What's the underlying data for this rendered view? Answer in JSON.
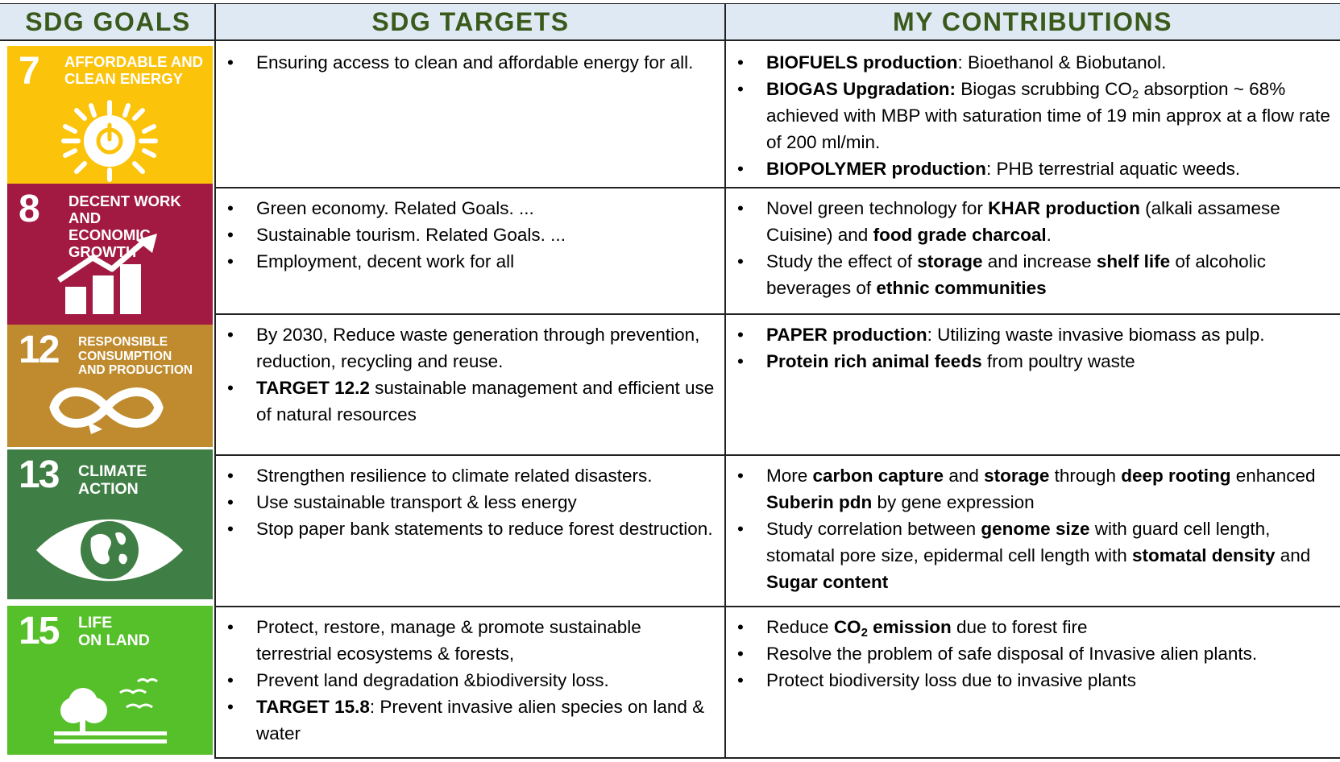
{
  "headers": {
    "goals": "SDG GOALS",
    "targets": "SDG TARGETS",
    "contributions": "MY CONTRIBUTIONS"
  },
  "bullet": "•",
  "goals": [
    {
      "number": "7",
      "title": "AFFORDABLE AND\nCLEAN ENERGY",
      "color": "#fcc30b",
      "icon": "sun-power-icon",
      "targets": [
        [
          {
            "t": "Ensuring access to clean and affordable energy for all."
          }
        ]
      ],
      "contributions": [
        [
          {
            "t": "BIOFUELS production",
            "b": true
          },
          {
            "t": ": Bioethanol & Biobutanol."
          }
        ],
        [
          {
            "t": "BIOGAS Upgradation:",
            "b": true
          },
          {
            "t": " Biogas scrubbing CO"
          },
          {
            "t": "2",
            "sub": true
          },
          {
            "t": " absorption ~ 68% achieved with MBP with saturation time of 19 min approx at a flow rate of 200 ml/min."
          }
        ],
        [
          {
            "t": "BIOPOLYMER production",
            "b": true
          },
          {
            "t": ": PHB terrestrial  aquatic weeds."
          }
        ]
      ]
    },
    {
      "number": "8",
      "title": "DECENT WORK AND\nECONOMIC GROWTH",
      "color": "#a21942",
      "icon": "growth-chart-icon",
      "targets": [
        [
          {
            "t": "Green economy. Related Goals. ..."
          }
        ],
        [
          {
            "t": "Sustainable tourism. Related Goals. ..."
          }
        ],
        [
          {
            "t": "Employment, decent work for all"
          }
        ]
      ],
      "contributions": [
        [
          {
            "t": "Novel green technology for "
          },
          {
            "t": "KHAR production",
            "b": true
          },
          {
            "t": " (alkali assamese Cuisine) and "
          },
          {
            "t": "food grade charcoal",
            "b": true
          },
          {
            "t": "."
          }
        ],
        [
          {
            "t": "Study the effect of "
          },
          {
            "t": "storage",
            "b": true
          },
          {
            "t": " and increase "
          },
          {
            "t": "shelf life",
            "b": true
          },
          {
            "t": " of alcoholic beverages of "
          },
          {
            "t": "ethnic communities",
            "b": true
          }
        ]
      ]
    },
    {
      "number": "12",
      "title": "RESPONSIBLE\nCONSUMPTION\nAND PRODUCTION",
      "color": "#bf8b2e",
      "icon": "infinity-loop-icon",
      "targets": [
        [
          {
            "t": "By 2030, Reduce waste generation through prevention, reduction, recycling and reuse."
          }
        ],
        [
          {
            "t": "TARGET 12.2",
            "b": true
          },
          {
            "t": " sustainable management and efficient use of natural resources"
          }
        ]
      ],
      "contributions": [
        [
          {
            "t": "PAPER production",
            "b": true
          },
          {
            "t": ": Utilizing waste invasive biomass as pulp."
          }
        ],
        [
          {
            "t": "Protein rich animal feeds",
            "b": true
          },
          {
            "t": " from poultry waste"
          }
        ]
      ]
    },
    {
      "number": "13",
      "title": "CLIMATE\nACTION",
      "color": "#3f7e44",
      "icon": "earth-eye-icon",
      "targets": [
        [
          {
            "t": "Strengthen resilience to climate related disasters."
          }
        ],
        [
          {
            "t": "Use sustainable transport & less energy"
          }
        ],
        [
          {
            "t": "Stop paper bank statements to reduce forest destruction."
          }
        ]
      ],
      "contributions": [
        [
          {
            "t": "More "
          },
          {
            "t": "carbon capture",
            "b": true
          },
          {
            "t": " and "
          },
          {
            "t": "storage",
            "b": true
          },
          {
            "t": " through "
          },
          {
            "t": "deep rooting",
            "b": true
          },
          {
            "t": " enhanced "
          },
          {
            "t": "Suberin pdn",
            "b": true
          },
          {
            "t": " by gene expression"
          }
        ],
        [
          {
            "t": " Study correlation between "
          },
          {
            "t": "genome size",
            "b": true
          },
          {
            "t": " with guard cell length, stomatal pore size, epidermal cell length with "
          },
          {
            "t": "stomatal density",
            "b": true
          },
          {
            "t": " and "
          },
          {
            "t": "Sugar content",
            "b": true
          }
        ]
      ]
    },
    {
      "number": "15",
      "title": "LIFE\nON LAND",
      "color": "#56c02b",
      "icon": "tree-birds-icon",
      "targets": [
        [
          {
            "t": "Protect, restore, manage & promote sustainable terrestrial ecosystems & forests,"
          }
        ],
        [
          {
            "t": "Prevent land degradation &biodiversity loss."
          }
        ],
        [
          {
            "t": "TARGET 15.8",
            "b": true
          },
          {
            "t": ": Prevent invasive alien species on land & water"
          }
        ]
      ],
      "contributions": [
        [
          {
            "t": "Reduce "
          },
          {
            "t": "CO",
            "b": true
          },
          {
            "t": "2",
            "b": true,
            "sub": true
          },
          {
            "t": " emission",
            "b": true
          },
          {
            "t": " due to forest fire"
          }
        ],
        [
          {
            "t": "Resolve  the problem of safe disposal of Invasive alien plants."
          }
        ],
        [
          {
            "t": "Protect biodiversity loss due to invasive plants"
          }
        ]
      ]
    }
  ]
}
